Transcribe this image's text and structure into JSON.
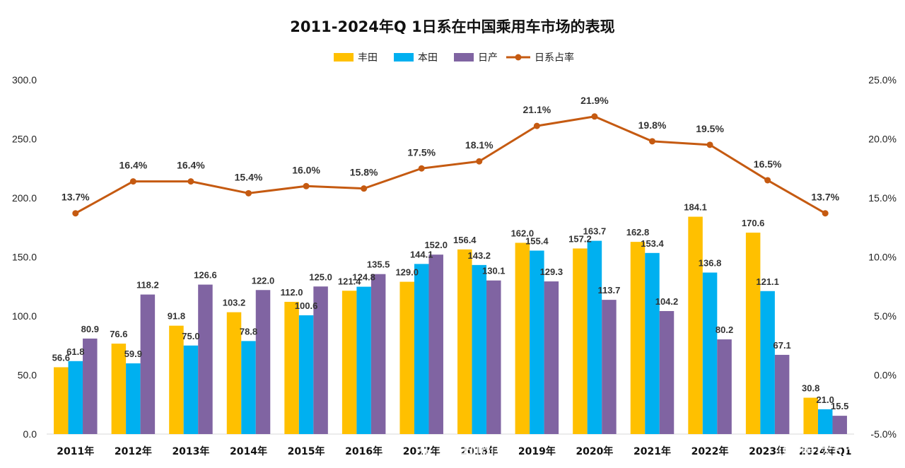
{
  "chart_data": {
    "type": "bar",
    "title": "2011-2024年Q 1日系在中国乘用车市场的表现",
    "categories": [
      "2011年",
      "2012年",
      "2013年",
      "2014年",
      "2015年",
      "2016年",
      "2017年",
      "2018年",
      "2019年",
      "2020年",
      "2021年",
      "2022年",
      "2023年",
      "2024年Q1"
    ],
    "series": [
      {
        "name": "丰田",
        "type": "bar",
        "color": "#FFC000",
        "axis": "left",
        "values": [
          56.6,
          76.6,
          91.8,
          103.2,
          112.0,
          121.4,
          129.0,
          156.4,
          162.0,
          157.2,
          162.8,
          184.1,
          170.6,
          30.8
        ]
      },
      {
        "name": "本田",
        "type": "bar",
        "color": "#00B0F0",
        "axis": "left",
        "values": [
          61.8,
          59.9,
          75.0,
          78.8,
          100.6,
          124.8,
          144.1,
          143.2,
          155.4,
          163.7,
          153.4,
          136.8,
          121.1,
          21.0
        ]
      },
      {
        "name": "日产",
        "type": "bar",
        "color": "#8064A2",
        "axis": "left",
        "values": [
          80.9,
          118.2,
          126.6,
          122.0,
          125.0,
          135.5,
          152.0,
          130.1,
          129.3,
          113.7,
          104.2,
          80.2,
          67.1,
          15.5
        ]
      },
      {
        "name": "日系占率",
        "type": "line",
        "color": "#C55A11",
        "axis": "right",
        "values": [
          13.7,
          16.4,
          16.4,
          15.4,
          16.0,
          15.8,
          17.5,
          18.1,
          21.1,
          21.9,
          19.8,
          19.5,
          16.5,
          13.7
        ],
        "labels": [
          "13.7%",
          "16.4%",
          "16.4%",
          "15.4%",
          "16.0%",
          "15.8%",
          "17.5%",
          "18.1%",
          "21.1%",
          "21.9%",
          "19.8%",
          "19.5%",
          "16.5%",
          "13.7%"
        ]
      }
    ],
    "ylim": [
      0,
      300
    ],
    "y_ticks": [
      "0.0",
      "50.0",
      "100.0",
      "150.0",
      "200.0",
      "250.0",
      "300.0"
    ],
    "y2lim": [
      -5,
      25
    ],
    "y2_ticks": [
      "-5.0%",
      "0.0%",
      "5.0%",
      "10.0%",
      "15.0%",
      "20.0%",
      "25.0%"
    ],
    "legend_position": "top-center",
    "grid": false
  },
  "watermark": {
    "left": "广东家电网",
    "left_sub": "WWW.GDMM.COM",
    "right": "@痛快舒畅"
  }
}
